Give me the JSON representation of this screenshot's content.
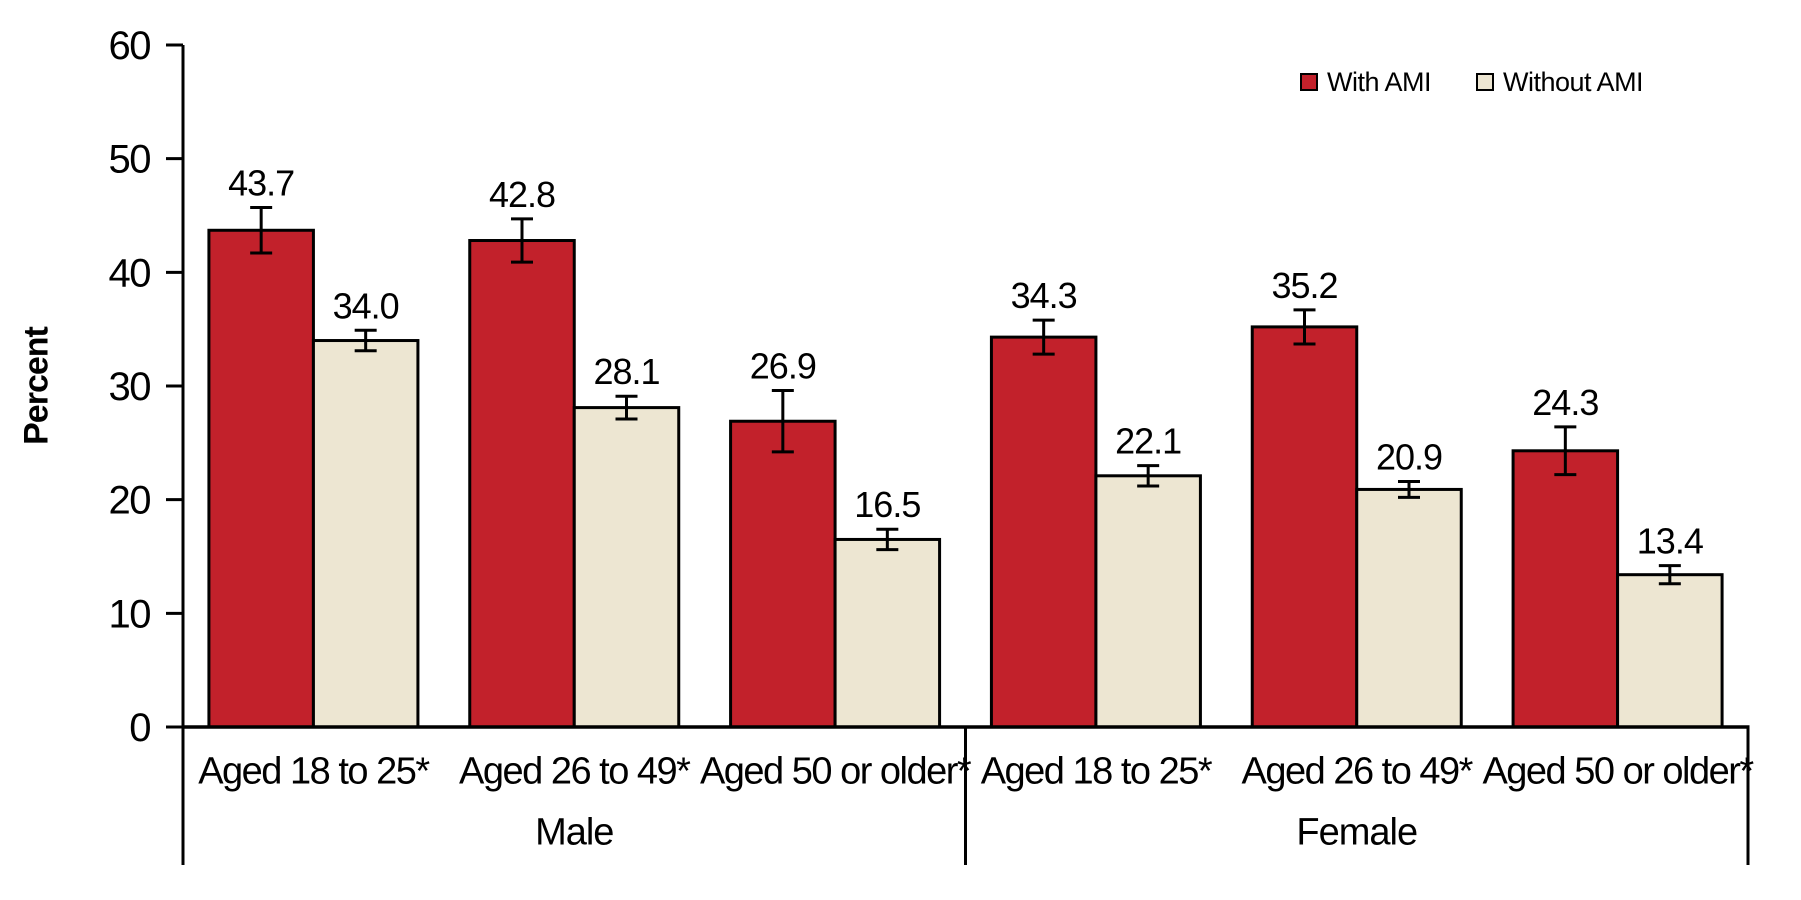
{
  "chart_data": {
    "type": "bar",
    "title": "",
    "ylabel": "Percent",
    "xlabel": "",
    "ylim": [
      0,
      60
    ],
    "yticks": [
      0,
      10,
      20,
      30,
      40,
      50,
      60
    ],
    "grid": false,
    "legend_position": "top-right",
    "value_labels_shown": true,
    "error_bars_shown": true,
    "groups": [
      "Male",
      "Female"
    ],
    "categories": [
      "Aged 18 to 25*",
      "Aged 26 to 49*",
      "Aged 50 or older*"
    ],
    "series": [
      {
        "name": "With AMI",
        "color": "#C2212B",
        "values": [
          [
            43.7,
            42.8,
            26.9
          ],
          [
            34.3,
            35.2,
            24.3
          ]
        ],
        "error": [
          [
            2.0,
            1.9,
            2.7
          ],
          [
            1.5,
            1.5,
            2.1
          ]
        ]
      },
      {
        "name": "Without AMI",
        "color": "#EDE6D2",
        "values": [
          [
            34.0,
            28.1,
            16.5
          ],
          [
            22.1,
            20.9,
            13.4
          ]
        ],
        "error": [
          [
            0.9,
            1.0,
            0.9
          ],
          [
            0.9,
            0.7,
            0.8
          ]
        ]
      }
    ]
  }
}
